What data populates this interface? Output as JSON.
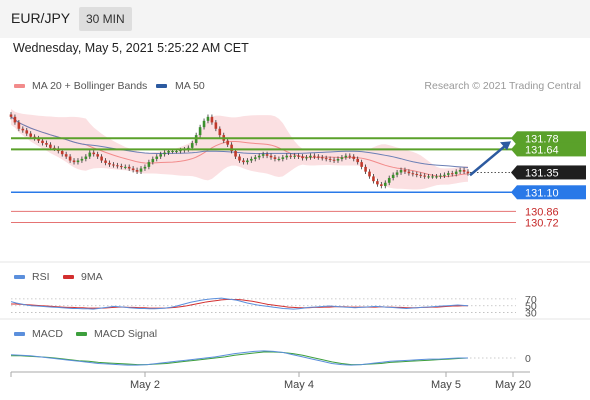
{
  "header": {
    "symbol": "EUR/JPY",
    "timeframe": "30 MIN",
    "datetime": "Wednesday, May 5, 2021 5:25:22 AM CET"
  },
  "legends": {
    "ma20": "MA 20 + Bollinger Bands",
    "ma50": "MA 50",
    "credit": "Research © 2021 Trading Central",
    "rsi": "RSI",
    "rsi_ma": "9MA",
    "macd": "MACD",
    "macd_signal": "MACD Signal"
  },
  "colors": {
    "bull": "#3b8f2c",
    "bear": "#c0392b",
    "resistance": "#5aa12a",
    "current": "#1f1f1f",
    "support": "#2979e8",
    "pivot": "#e57373",
    "bollinger": "#fadadd",
    "ma20": "#f28b8b",
    "ma50": "#6b7fb5",
    "rsi": "#5b8fdc",
    "macd": "#5b8fdc",
    "signal": "#3d9f3d",
    "arrow": "#2c5aa0"
  },
  "chart_data": {
    "type": "candlestick",
    "x_ticks": [
      "May 2",
      "May 4",
      "May 5",
      "May 20"
    ],
    "y_range": [
      130.6,
      132.3
    ],
    "levels": [
      {
        "label": "131.78",
        "value": 131.78,
        "kind": "resistance"
      },
      {
        "label": "131.64",
        "value": 131.64,
        "kind": "resistance"
      },
      {
        "label": "131.35",
        "value": 131.35,
        "kind": "current"
      },
      {
        "label": "131.10",
        "value": 131.1,
        "kind": "support"
      },
      {
        "label": "130.86",
        "value": 130.86,
        "kind": "pivot"
      },
      {
        "label": "130.72",
        "value": 130.72,
        "kind": "pivot"
      }
    ],
    "close": [
      132.05,
      131.98,
      131.9,
      131.88,
      131.84,
      131.8,
      131.78,
      131.75,
      131.72,
      131.7,
      131.66,
      131.65,
      131.62,
      131.58,
      131.55,
      131.5,
      131.48,
      131.5,
      131.52,
      131.55,
      131.6,
      131.58,
      131.55,
      131.5,
      131.47,
      131.45,
      131.44,
      131.43,
      131.42,
      131.42,
      131.4,
      131.38,
      131.36,
      131.4,
      131.42,
      131.48,
      131.52,
      131.55,
      131.58,
      131.6,
      131.62,
      131.62,
      131.62,
      131.63,
      131.64,
      131.66,
      131.72,
      131.82,
      131.92,
      132.0,
      132.05,
      131.98,
      131.9,
      131.82,
      131.75,
      131.7,
      131.62,
      131.55,
      131.5,
      131.48,
      131.5,
      131.52,
      131.54,
      131.56,
      131.58,
      131.56,
      131.54,
      131.52,
      131.52,
      131.54,
      131.56,
      131.55,
      131.56,
      131.55,
      131.53,
      131.54,
      131.56,
      131.55,
      131.54,
      131.53,
      131.52,
      131.51,
      131.5,
      131.52,
      131.54,
      131.56,
      131.55,
      131.52,
      131.48,
      131.42,
      131.36,
      131.3,
      131.24,
      131.2,
      131.18,
      131.22,
      131.28,
      131.32,
      131.35,
      131.38,
      131.36,
      131.34,
      131.33,
      131.32,
      131.31,
      131.3,
      131.3,
      131.3,
      131.3,
      131.31,
      131.32,
      131.34,
      131.33,
      131.36,
      131.38,
      131.36,
      131.34
    ],
    "rsi": {
      "levels": [
        70,
        50,
        30
      ],
      "rsi": [
        62,
        58,
        55,
        52,
        50,
        49,
        48,
        47,
        46,
        45,
        44,
        43,
        42,
        42,
        41,
        41,
        40,
        42,
        44,
        46,
        48,
        47,
        46,
        44,
        43,
        42,
        42,
        41,
        41,
        42,
        43,
        45,
        48,
        52,
        56,
        60,
        63,
        66,
        68,
        70,
        71,
        72,
        70,
        68,
        66,
        62,
        58,
        55,
        52,
        50,
        48,
        46,
        44,
        42,
        41,
        40,
        41,
        43,
        45,
        46,
        47,
        48,
        49,
        48,
        47,
        46,
        45,
        44,
        45,
        46,
        47,
        48,
        47,
        46,
        45,
        44,
        43,
        42,
        43,
        44,
        45,
        46,
        47,
        48,
        49,
        50,
        51,
        52,
        51,
        50
      ],
      "ma": [
        55,
        55,
        54,
        53,
        52,
        51,
        50,
        49,
        48,
        47,
        46,
        45,
        45,
        44,
        44,
        43,
        43,
        43,
        43,
        44,
        45,
        46,
        46,
        45,
        45,
        44,
        44,
        43,
        43,
        43,
        43,
        44,
        45,
        47,
        49,
        52,
        55,
        58,
        61,
        63,
        65,
        67,
        68,
        68,
        68,
        67,
        65,
        63,
        60,
        57,
        54,
        52,
        50,
        48,
        46,
        45,
        44,
        44,
        44,
        45,
        45,
        46,
        46,
        47,
        47,
        47,
        46,
        46,
        46,
        46,
        46,
        46,
        47,
        46,
        46,
        45,
        45,
        44,
        44,
        44,
        45,
        45,
        46,
        46,
        47,
        48,
        49,
        49,
        50,
        50
      ]
    },
    "macd": {
      "zero_label": "0",
      "macd": [
        0.06,
        0.05,
        0.04,
        0.02,
        0.0,
        -0.02,
        -0.04,
        -0.06,
        -0.08,
        -0.1,
        -0.11,
        -0.12,
        -0.13,
        -0.13,
        -0.12,
        -0.1,
        -0.08,
        -0.06,
        -0.04,
        -0.02,
        0.0,
        0.02,
        0.05,
        0.08,
        0.1,
        0.12,
        0.13,
        0.12,
        0.1,
        0.06,
        0.02,
        -0.02,
        -0.06,
        -0.1,
        -0.12,
        -0.13,
        -0.12,
        -0.1,
        -0.08,
        -0.06,
        -0.05,
        -0.04,
        -0.03,
        -0.02,
        -0.02,
        -0.01,
        0.0,
        0.0
      ],
      "signal": [
        0.04,
        0.04,
        0.03,
        0.02,
        0.01,
        -0.01,
        -0.03,
        -0.05,
        -0.06,
        -0.08,
        -0.09,
        -0.1,
        -0.11,
        -0.12,
        -0.12,
        -0.11,
        -0.1,
        -0.08,
        -0.06,
        -0.04,
        -0.02,
        0.0,
        0.02,
        0.05,
        0.07,
        0.09,
        0.11,
        0.11,
        0.1,
        0.08,
        0.05,
        0.01,
        -0.03,
        -0.07,
        -0.1,
        -0.12,
        -0.12,
        -0.11,
        -0.1,
        -0.08,
        -0.07,
        -0.06,
        -0.05,
        -0.04,
        -0.03,
        -0.02,
        -0.01,
        0.0
      ]
    }
  }
}
